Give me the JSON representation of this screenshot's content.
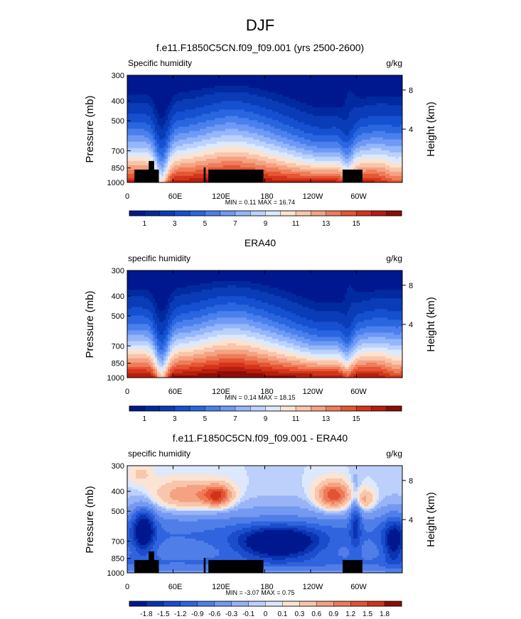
{
  "figure_title": "DJF",
  "chart_data": [
    {
      "type": "heatmap",
      "title": "f.e11.F1850C5CN.f09_f09.001 (yrs 2500-2600)",
      "left_label": "Specific humidity",
      "right_label": "g/kg",
      "ylabel": "Pressure (mb)",
      "y2label": "Height (km)",
      "xticks": [
        "0",
        "60E",
        "120E",
        "180",
        "120W",
        "60W"
      ],
      "yticks": [
        "300",
        "400",
        "500",
        "700",
        "850",
        "1000"
      ],
      "y2ticks": [
        "8",
        "4"
      ],
      "minmax": "MIN =   0.11   MAX =   16.74",
      "colorbar_labels": [
        "1",
        "3",
        "5",
        "7",
        "9",
        "11",
        "13",
        "15"
      ],
      "colorbar_colors": [
        "#00188f",
        "#002a9f",
        "#0a3cb8",
        "#1550d0",
        "#2a66e0",
        "#4a80ee",
        "#6e9af5",
        "#95b6fa",
        "#bcd2fc",
        "#dde9fc",
        "#fbe3d2",
        "#f9c5ab",
        "#f5a283",
        "#ef7d5a",
        "#e55633",
        "#d4351a",
        "#b81d0e",
        "#8c0d08"
      ],
      "levels": [
        0.5,
        1,
        2,
        3,
        4,
        5,
        6,
        7,
        8,
        9,
        10,
        11,
        12,
        13,
        14,
        15,
        16
      ]
    },
    {
      "type": "heatmap",
      "title": "ERA40",
      "left_label": "specific humidity",
      "right_label": "g/kg",
      "ylabel": "Pressure (mb)",
      "y2label": "Height (km)",
      "xticks": [
        "0",
        "60E",
        "120E",
        "180",
        "120W",
        "60W"
      ],
      "yticks": [
        "300",
        "400",
        "500",
        "700",
        "850",
        "1000"
      ],
      "y2ticks": [
        "8",
        "4"
      ],
      "minmax": "MIN =   0.14   MAX =   18.15",
      "colorbar_labels": [
        "1",
        "3",
        "5",
        "7",
        "9",
        "11",
        "13",
        "15"
      ],
      "colorbar_colors": [
        "#00188f",
        "#002a9f",
        "#0a3cb8",
        "#1550d0",
        "#2a66e0",
        "#4a80ee",
        "#6e9af5",
        "#95b6fa",
        "#bcd2fc",
        "#dde9fc",
        "#fbe3d2",
        "#f9c5ab",
        "#f5a283",
        "#ef7d5a",
        "#e55633",
        "#d4351a",
        "#b81d0e",
        "#8c0d08"
      ],
      "levels": [
        0.5,
        1,
        2,
        3,
        4,
        5,
        6,
        7,
        8,
        9,
        10,
        11,
        12,
        13,
        14,
        15,
        16
      ]
    },
    {
      "type": "heatmap",
      "title": "f.e11.F1850C5CN.f09_f09.001 - ERA40",
      "left_label": "specific humidity",
      "right_label": "g/kg",
      "ylabel": "Pressure (mb)",
      "y2label": "Height (km)",
      "xticks": [
        "0",
        "60E",
        "120E",
        "180",
        "120W",
        "60W"
      ],
      "yticks": [
        "300",
        "400",
        "500",
        "700",
        "850",
        "1000"
      ],
      "y2ticks": [
        "8",
        "4"
      ],
      "minmax": "MIN =  -3.07   MAX =   0.75",
      "colorbar_labels": [
        "-1.8",
        "-1.5",
        "-1.2",
        "-0.9",
        "-0.6",
        "-0.3",
        "-0.1",
        "0",
        "0.1",
        "0.3",
        "0.6",
        "0.9",
        "1.2",
        "1.5",
        "1.8"
      ],
      "colorbar_colors": [
        "#00188f",
        "#0a34b0",
        "#1a4ccc",
        "#3064de",
        "#507ee9",
        "#7499f1",
        "#98b4f7",
        "#bcd0fb",
        "#dde8fc",
        "#fbe4d4",
        "#f8c6ad",
        "#f4a282",
        "#ee7b57",
        "#e35332",
        "#d1321a",
        "#8c0d08"
      ],
      "levels": [
        -1.8,
        -1.5,
        -1.2,
        -0.9,
        -0.6,
        -0.3,
        -0.1,
        0,
        0.1,
        0.3,
        0.6,
        0.9,
        1.2,
        1.5,
        1.8
      ]
    }
  ]
}
